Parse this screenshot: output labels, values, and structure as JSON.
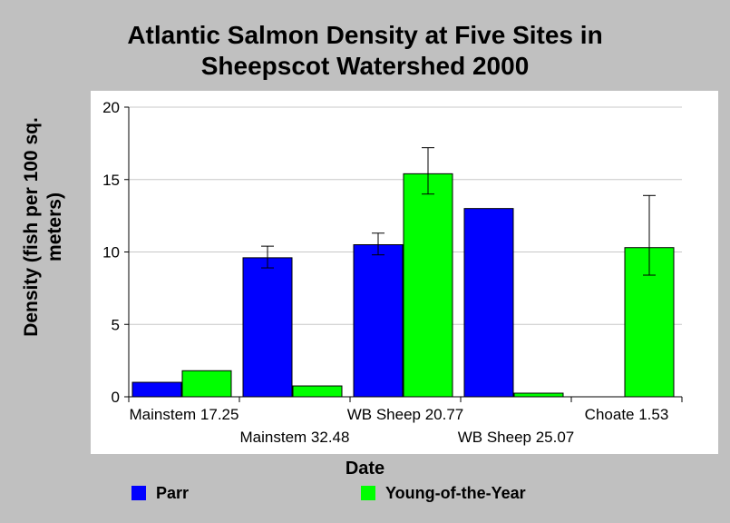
{
  "chart_data": {
    "type": "bar",
    "title": [
      "Atlantic Salmon Density at Five Sites in",
      "Sheepscot Watershed 2000"
    ],
    "xlabel": "Date",
    "ylabel": "Density (fish per 100 sq. meters)",
    "ylim": [
      0,
      20
    ],
    "yticks": [
      0,
      5,
      10,
      15,
      20
    ],
    "grid": true,
    "legend_position": "bottom",
    "categories": [
      "Mainstem 17.25",
      "Mainstem 32.48",
      "WB Sheep 20.77",
      "WB Sheep 25.07",
      "Choate 1.53"
    ],
    "series": [
      {
        "name": "Parr",
        "color": "#0000ff",
        "values": [
          1.0,
          9.6,
          10.5,
          13.0,
          0
        ],
        "error_low": [
          null,
          8.9,
          9.8,
          null,
          null
        ],
        "error_high": [
          null,
          10.4,
          11.3,
          null,
          null
        ]
      },
      {
        "name": "Young-of-the-Year",
        "color": "#00ff00",
        "values": [
          1.8,
          0.75,
          15.4,
          0.25,
          10.3
        ],
        "error_low": [
          null,
          null,
          14.0,
          null,
          8.4
        ],
        "error_high": [
          null,
          null,
          17.2,
          null,
          13.9
        ]
      }
    ]
  }
}
